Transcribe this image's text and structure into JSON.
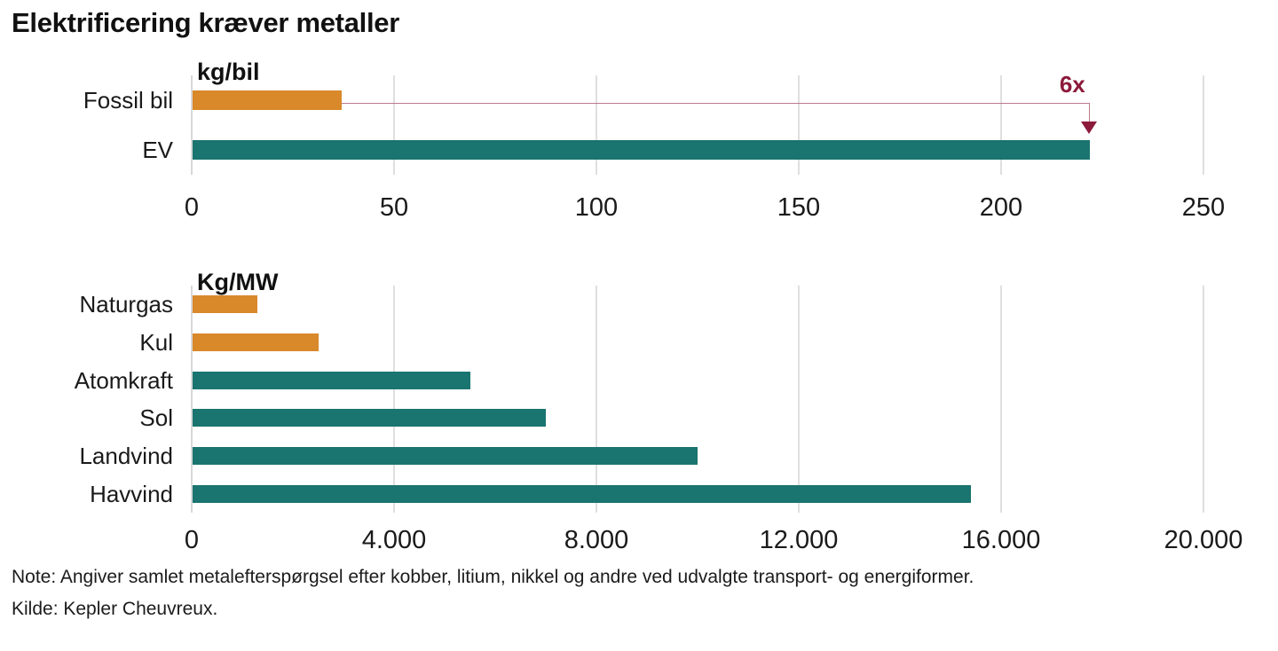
{
  "title": "Elektrificering kræver metaller",
  "note": "Note: Angiver samlet metalefterspørgsel efter kobber, litium, nikkel og andre ved udvalgte transport- og energiformer.",
  "source": "Kilde: Kepler Cheuvreux.",
  "colors": {
    "orange": "#d9882a",
    "teal": "#1a746f",
    "annotation": "#8c1a3b",
    "annotation_line": "#bb7b8b",
    "gridline": "#dfdfdf",
    "axis_line": "#d8d8d8",
    "text": "#1a1a1a"
  },
  "chart_data": [
    {
      "type": "bar",
      "orientation": "horizontal",
      "unit_label": "kg/bil",
      "categories": [
        "Fossil bil",
        "EV"
      ],
      "values": [
        37,
        222
      ],
      "bar_colors": [
        "orange",
        "teal"
      ],
      "xlim": [
        0,
        250
      ],
      "grid": true,
      "ticks": [
        {
          "value": 0,
          "label": "0"
        },
        {
          "value": 50,
          "label": "50"
        },
        {
          "value": 100,
          "label": "100"
        },
        {
          "value": 150,
          "label": "150"
        },
        {
          "value": 200,
          "label": "200"
        },
        {
          "value": 250,
          "label": "250"
        }
      ],
      "annotation": {
        "text": "6x",
        "from_value": 37,
        "to_value": 222
      }
    },
    {
      "type": "bar",
      "orientation": "horizontal",
      "unit_label": "Kg/MW",
      "categories": [
        "Naturgas",
        "Kul",
        "Atomkraft",
        "Sol",
        "Landvind",
        "Havvind"
      ],
      "values": [
        1300,
        2500,
        5500,
        7000,
        10000,
        15400
      ],
      "bar_colors": [
        "orange",
        "orange",
        "teal",
        "teal",
        "teal",
        "teal"
      ],
      "xlim": [
        0,
        20000
      ],
      "grid": true,
      "ticks": [
        {
          "value": 0,
          "label": "0"
        },
        {
          "value": 4000,
          "label": "4.000"
        },
        {
          "value": 8000,
          "label": "8.000"
        },
        {
          "value": 12000,
          "label": "12.000"
        },
        {
          "value": 16000,
          "label": "16.000"
        },
        {
          "value": 20000,
          "label": "20.000"
        }
      ]
    }
  ]
}
